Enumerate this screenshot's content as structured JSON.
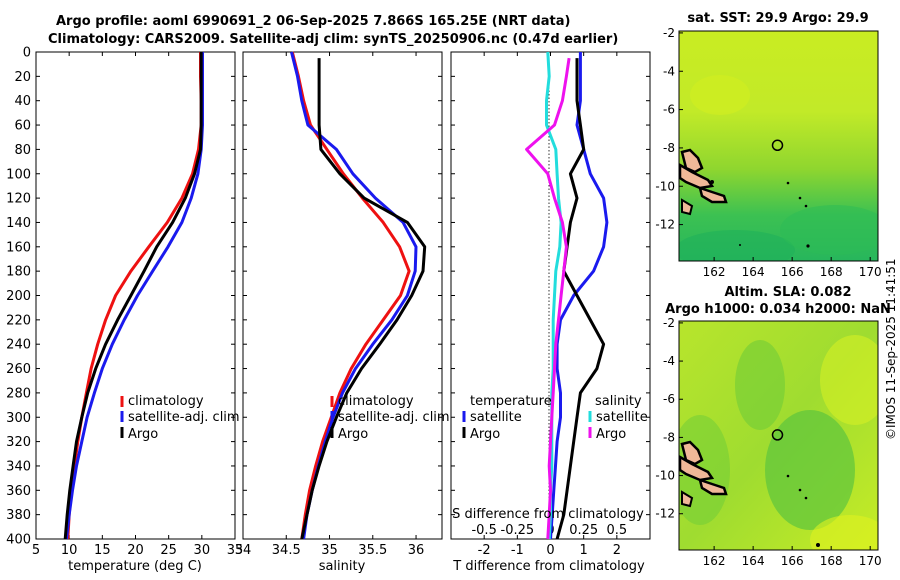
{
  "titles": {
    "line1": "Argo profile: aoml 6990691_2 06-Sep-2025 7.866S 165.25E (NRT data)",
    "line2": "Climatology: CARS2009. Satellite-adj clim: synTS_20250906.nc (0.47d earlier)",
    "sst": "sat. SST: 29.9 Argo: 29.9",
    "sla1": "Altim. SLA: 0.082",
    "sla2": "Argo h1000: 0.034 h2000: NaN"
  },
  "copyright": "©IMOS 11-Sep-2025 11:41:51",
  "colors": {
    "climatology": "#ee1111",
    "satellite": "#1a1aee",
    "argo": "#000000",
    "argo_sal": "#ee11ee",
    "sat_sal": "#22dddd"
  },
  "chart_data": [
    {
      "type": "line",
      "name": "temperature-profile",
      "xlabel": "temperature (deg C)",
      "ylabel": "",
      "xlim": [
        5,
        35
      ],
      "ylim": [
        400,
        0
      ],
      "xticks": [
        "5",
        "10",
        "15",
        "20",
        "25",
        "30",
        "35"
      ],
      "yticks": [
        "0",
        "20",
        "40",
        "60",
        "80",
        "100",
        "120",
        "140",
        "160",
        "180",
        "200",
        "220",
        "240",
        "260",
        "280",
        "300",
        "320",
        "340",
        "360",
        "380",
        "400"
      ],
      "series": [
        {
          "name": "climatology",
          "color": "climatology",
          "x": [
            29.8,
            29.8,
            29.9,
            29.9,
            29.5,
            28.6,
            27.0,
            24.8,
            22.0,
            19.3,
            17.0,
            15.5,
            14.3,
            13.3,
            12.6,
            11.9,
            11.3,
            10.8,
            10.3,
            10.0,
            9.8
          ],
          "y": [
            0,
            20,
            40,
            60,
            80,
            100,
            120,
            140,
            160,
            180,
            200,
            220,
            240,
            260,
            280,
            300,
            320,
            340,
            360,
            380,
            400
          ]
        },
        {
          "name": "satellite-adj. clim",
          "color": "satellite",
          "x": [
            30.1,
            30.1,
            30.1,
            30.1,
            29.9,
            29.4,
            28.4,
            27.0,
            24.9,
            22.6,
            20.3,
            18.3,
            16.5,
            15.0,
            13.8,
            12.7,
            11.9,
            11.1,
            10.5,
            10.0,
            9.6
          ],
          "y": [
            0,
            20,
            40,
            60,
            80,
            100,
            120,
            140,
            160,
            180,
            200,
            220,
            240,
            260,
            280,
            300,
            320,
            340,
            360,
            380,
            400
          ]
        },
        {
          "name": "Argo",
          "color": "argo",
          "x": [
            29.9,
            29.9,
            29.9,
            29.9,
            29.8,
            28.9,
            27.5,
            25.6,
            23.2,
            21.3,
            19.3,
            17.3,
            15.5,
            14.0,
            12.8,
            11.9,
            11.1,
            10.6,
            10.1,
            9.7,
            9.4
          ],
          "y": [
            0,
            20,
            40,
            60,
            80,
            100,
            120,
            140,
            160,
            180,
            200,
            220,
            240,
            260,
            280,
            300,
            320,
            340,
            360,
            380,
            400
          ]
        }
      ],
      "legend": [
        "climatology",
        "satellite-adj. clim",
        "Argo"
      ],
      "legend_position": "bottom-right"
    },
    {
      "type": "line",
      "name": "salinity-profile",
      "xlabel": "salinity",
      "xlim": [
        34,
        36.3
      ],
      "ylim": [
        400,
        0
      ],
      "xticks": [
        "34",
        "34.5",
        "35",
        "35.5",
        "36"
      ],
      "series": [
        {
          "name": "climatology",
          "color": "climatology",
          "x": [
            34.57,
            34.64,
            34.7,
            34.78,
            34.97,
            35.16,
            35.38,
            35.62,
            35.81,
            35.92,
            35.82,
            35.62,
            35.42,
            35.25,
            35.12,
            35.02,
            34.92,
            34.84,
            34.77,
            34.72,
            34.68
          ],
          "y": [
            0,
            20,
            40,
            60,
            80,
            100,
            120,
            140,
            160,
            180,
            200,
            220,
            240,
            260,
            280,
            300,
            320,
            340,
            360,
            380,
            400
          ]
        },
        {
          "name": "satellite-adj. clim",
          "color": "satellite",
          "x": [
            34.56,
            34.63,
            34.68,
            34.75,
            35.08,
            35.27,
            35.53,
            35.85,
            36.0,
            35.99,
            35.9,
            35.72,
            35.5,
            35.3,
            35.15,
            35.04,
            34.95,
            34.87,
            34.8,
            34.74,
            34.7
          ],
          "y": [
            0,
            20,
            40,
            60,
            80,
            100,
            120,
            140,
            160,
            180,
            200,
            220,
            240,
            260,
            280,
            300,
            320,
            340,
            360,
            380,
            400
          ]
        },
        {
          "name": "Argo",
          "color": "argo",
          "x": [
            34.88,
            34.88,
            34.88,
            34.88,
            34.9,
            35.12,
            35.4,
            35.9,
            36.1,
            36.08,
            35.95,
            35.78,
            35.58,
            35.37,
            35.2,
            35.08,
            34.97,
            34.88,
            34.8,
            34.74,
            34.68
          ],
          "y": [
            5,
            20,
            40,
            60,
            80,
            100,
            120,
            140,
            160,
            180,
            200,
            220,
            240,
            260,
            280,
            300,
            320,
            340,
            360,
            380,
            400
          ]
        }
      ],
      "legend": [
        "climatology",
        "satellite-adj. clim",
        "Argo"
      ],
      "legend_position": "bottom-right"
    },
    {
      "type": "line",
      "name": "difference-profile",
      "xlabel": "T difference from climatology",
      "xlabel_top": "S difference from climatology",
      "xlim": [
        -3,
        3
      ],
      "ylim": [
        400,
        0
      ],
      "xticks": [
        "-2",
        "-1",
        "0",
        "1",
        "2"
      ],
      "xticks_top": [
        "-0.5",
        "-0.25",
        "0",
        "0.25",
        "0.5"
      ],
      "series": [
        {
          "name": "temperature satellite",
          "color": "satellite",
          "x": [
            0.9,
            0.9,
            0.9,
            0.8,
            1.0,
            1.2,
            1.6,
            1.7,
            1.6,
            1.3,
            0.7,
            0.3,
            0.2,
            0.2,
            0.3,
            0.3,
            0.2,
            0.15,
            0.1,
            0.05,
            0.0
          ],
          "y": [
            0,
            20,
            40,
            60,
            80,
            100,
            120,
            140,
            160,
            180,
            200,
            220,
            240,
            260,
            280,
            300,
            320,
            340,
            360,
            380,
            400
          ]
        },
        {
          "name": "temperature Argo",
          "color": "argo",
          "x": [
            0.8,
            0.8,
            0.8,
            0.9,
            1.0,
            0.6,
            0.8,
            0.6,
            0.5,
            0.4,
            0.8,
            1.2,
            1.6,
            1.4,
            0.9,
            0.8,
            0.7,
            0.6,
            0.5,
            0.4,
            0.2
          ],
          "y": [
            5,
            20,
            40,
            60,
            80,
            100,
            120,
            140,
            160,
            180,
            200,
            220,
            240,
            260,
            280,
            300,
            320,
            340,
            360,
            380,
            400
          ]
        },
        {
          "name": "salinity satellite",
          "color": "sat_sal",
          "x": [
            -0.02,
            -0.01,
            -0.03,
            -0.03,
            0.04,
            0.05,
            0.06,
            0.08,
            0.07,
            0.04,
            0.03,
            0.02,
            0.02,
            0.02,
            0.01,
            0.01,
            0.01,
            0.01,
            0.0,
            0.0,
            -0.01
          ],
          "y": [
            0,
            20,
            40,
            60,
            80,
            100,
            120,
            140,
            160,
            180,
            200,
            220,
            240,
            260,
            280,
            300,
            320,
            340,
            360,
            380,
            400
          ]
        },
        {
          "name": "salinity Argo",
          "color": "argo_sal",
          "x": [
            0.14,
            0.12,
            0.09,
            0.03,
            -0.18,
            -0.02,
            0.03,
            0.09,
            0.12,
            0.1,
            0.08,
            0.06,
            0.04,
            0.03,
            0.02,
            0.01,
            0.0,
            -0.01,
            0.0,
            -0.01,
            -0.02
          ],
          "y": [
            5,
            20,
            40,
            60,
            80,
            100,
            120,
            140,
            160,
            180,
            200,
            220,
            240,
            260,
            280,
            300,
            320,
            340,
            360,
            380,
            400
          ]
        }
      ],
      "legend_temperature": {
        "heading": "temperature",
        "items": [
          "satellite",
          "Argo"
        ]
      },
      "legend_salinity": {
        "heading": "salinity",
        "items": [
          "satellite",
          "Argo"
        ]
      }
    },
    {
      "type": "heatmap",
      "name": "sst-map",
      "title": "sat. SST: 29.9 Argo: 29.9",
      "xticks": [
        "162",
        "164",
        "166",
        "168",
        "170"
      ],
      "yticks": [
        "-2",
        "-4",
        "-6",
        "-8",
        "-10",
        "-12"
      ],
      "xlim": [
        160.2,
        170.4
      ],
      "ylim": [
        -13.9,
        -1.9
      ],
      "marker": {
        "lon": 165.25,
        "lat": -7.866
      }
    },
    {
      "type": "heatmap",
      "name": "sla-map",
      "title": "Altim. SLA: 0.082",
      "subtitle": "Argo h1000: 0.034 h2000: NaN",
      "xticks": [
        "162",
        "164",
        "166",
        "168",
        "170"
      ],
      "yticks": [
        "-2",
        "-4",
        "-6",
        "-8",
        "-10",
        "-12"
      ],
      "xlim": [
        160.2,
        170.4
      ],
      "ylim": [
        -13.9,
        -1.9
      ],
      "marker": {
        "lon": 165.25,
        "lat": -7.866
      }
    }
  ]
}
